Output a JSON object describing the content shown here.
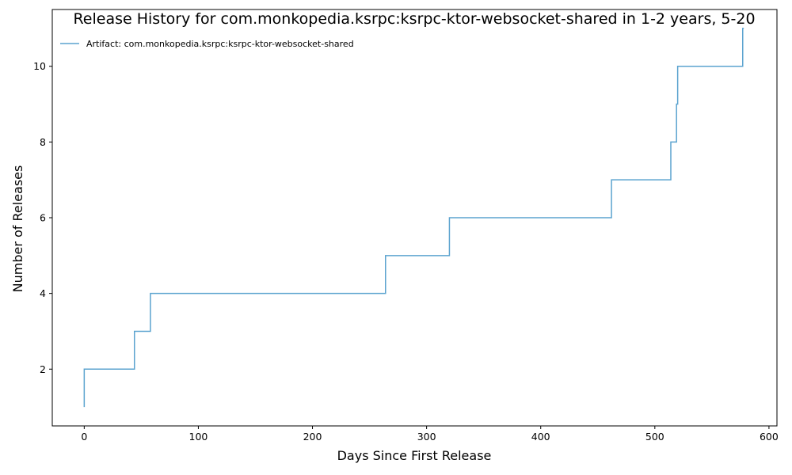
{
  "chart_data": {
    "type": "line",
    "step": true,
    "title": "Release History for com.monkopedia.ksrpc:ksrpc-ktor-websocket-shared in 1-2 years, 5-20",
    "xlabel": "Days Since First Release",
    "ylabel": "Number of Releases",
    "xlim": [
      -28,
      607
    ],
    "ylim": [
      0.5,
      11.5
    ],
    "xticks": [
      0,
      100,
      200,
      300,
      400,
      500,
      600
    ],
    "yticks": [
      2,
      4,
      6,
      8,
      10
    ],
    "grid": false,
    "legend_position": "top-left",
    "series": [
      {
        "name": "Artifact: com.monkopedia.ksrpc:ksrpc-ktor-websocket-shared",
        "color": "#5ba3cf",
        "x": [
          0,
          0,
          44,
          58,
          264,
          320,
          462,
          514,
          519,
          520,
          577,
          578
        ],
        "y": [
          1,
          2,
          3,
          4,
          5,
          6,
          7,
          8,
          9,
          10,
          11,
          11
        ]
      }
    ]
  }
}
